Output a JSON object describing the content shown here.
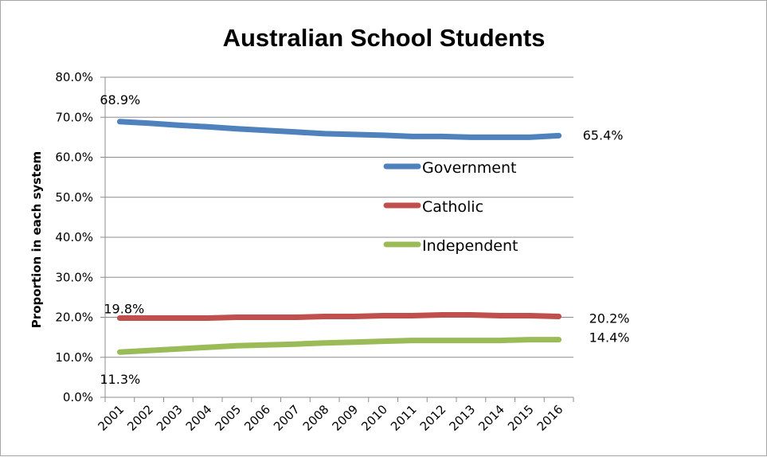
{
  "chart_data": {
    "type": "line",
    "title": "Australian School Students",
    "ylabel": "Proportion in each system",
    "xlabel": "",
    "ylim": [
      0,
      80
    ],
    "y_ticks": [
      "0.0%",
      "10.0%",
      "20.0%",
      "30.0%",
      "40.0%",
      "50.0%",
      "60.0%",
      "70.0%",
      "80.0%"
    ],
    "y_tick_values": [
      0,
      10,
      20,
      30,
      40,
      50,
      60,
      70,
      80
    ],
    "grid": true,
    "legend_position": "center-right",
    "categories": [
      "2001",
      "2002",
      "2003",
      "2004",
      "2005",
      "2006",
      "2007",
      "2008",
      "2009",
      "2010",
      "2011",
      "2012",
      "2013",
      "2014",
      "2015",
      "2016"
    ],
    "series": [
      {
        "name": "Government",
        "color": "#4f81bd",
        "values": [
          68.9,
          68.5,
          68.0,
          67.6,
          67.1,
          66.7,
          66.3,
          65.9,
          65.7,
          65.5,
          65.2,
          65.2,
          65.0,
          65.0,
          65.0,
          65.4
        ],
        "start_label": "68.9%",
        "end_label": "65.4%"
      },
      {
        "name": "Catholic",
        "color": "#c0504d",
        "values": [
          19.8,
          19.8,
          19.8,
          19.8,
          20.0,
          20.0,
          20.0,
          20.2,
          20.2,
          20.4,
          20.4,
          20.6,
          20.6,
          20.4,
          20.4,
          20.2
        ],
        "start_label": "19.8%",
        "end_label": "20.2%"
      },
      {
        "name": "Independent",
        "color": "#9bbb59",
        "values": [
          11.3,
          11.7,
          12.1,
          12.5,
          12.9,
          13.1,
          13.3,
          13.6,
          13.8,
          14.0,
          14.2,
          14.2,
          14.2,
          14.2,
          14.4,
          14.4
        ],
        "start_label": "11.3%",
        "end_label": "14.4%"
      }
    ]
  }
}
